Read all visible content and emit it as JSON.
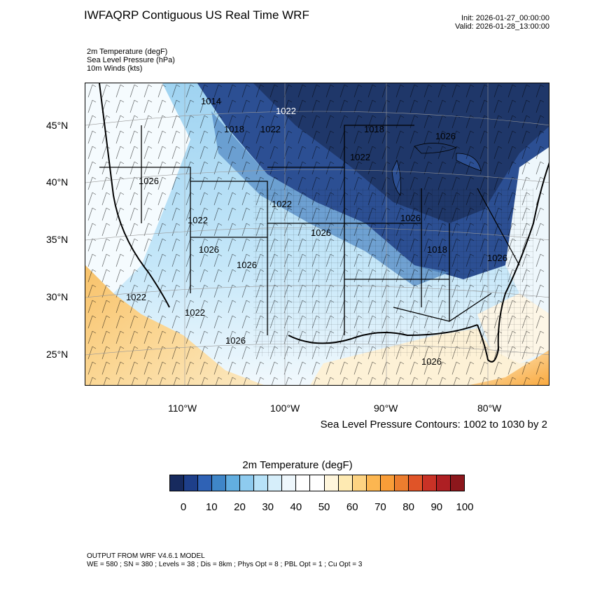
{
  "header": {
    "title": "IWFAQRP Contiguous US Real Time WRF",
    "init": "Init: 2026-01-27_00:00:00",
    "valid": "Valid: 2026-01-28_13:00:00"
  },
  "fields": {
    "temperature": "2m Temperature   (degF)",
    "pressure": "Sea Level Pressure   (hPa)",
    "winds": "10m Winds   (kts)"
  },
  "map": {
    "lat_labels": [
      "45°N",
      "40°N",
      "35°N",
      "30°N",
      "25°N"
    ],
    "lon_labels": [
      "110°W",
      "100°W",
      "90°W",
      "80°W"
    ],
    "contour_labels": [
      "1014",
      "1022",
      "1018",
      "1022",
      "1018",
      "1022",
      "1022",
      "1026",
      "1022",
      "1026",
      "1026",
      "1026",
      "1026",
      "1022",
      "1022",
      "1026",
      "1026",
      "1026",
      "1026",
      "1018"
    ],
    "contour_note": "Sea Level Pressure Contours: 1002 to 1030 by 2"
  },
  "colorbar": {
    "title": "2m Temperature  (degF)",
    "colors": [
      "#172a5e",
      "#1e3f8a",
      "#2f62b5",
      "#3f86c8",
      "#62aee0",
      "#8ecbef",
      "#b7e2f8",
      "#d6eefa",
      "#eef7fc",
      "#ffffff",
      "#ffffff",
      "#fff6dc",
      "#feeab2",
      "#fdd382",
      "#fcb651",
      "#f99d38",
      "#ec7d2e",
      "#e05428",
      "#c93226",
      "#ae1f23",
      "#8c171c"
    ],
    "ticks": [
      "0",
      "10",
      "20",
      "30",
      "40",
      "50",
      "60",
      "70",
      "80",
      "90",
      "100"
    ]
  },
  "footer": {
    "line1": "OUTPUT FROM WRF V4.6.1 MODEL",
    "line2": "WE = 580 ; SN = 380 ; Levels = 38 ; Dis = 8km ; Phys Opt = 8 ; PBL Opt = 1 ; Cu Opt = 3"
  }
}
